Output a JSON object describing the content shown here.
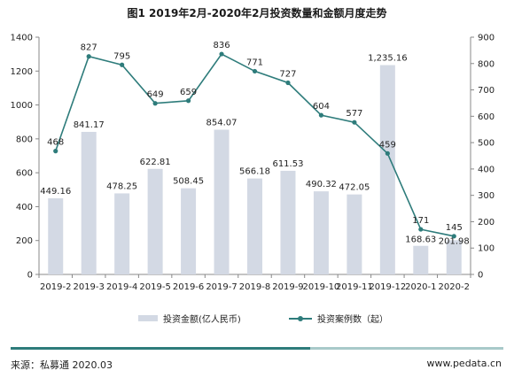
{
  "chart_data": {
    "type": "bar+line",
    "title": "图1 2019年2月-2020年2月投资数量和金额月度走势",
    "categories": [
      "2019-2",
      "2019-3",
      "2019-4",
      "2019-5",
      "2019-6",
      "2019-7",
      "2019-8",
      "2019-9",
      "2019-10",
      "2019-11",
      "2019-12",
      "2020-1",
      "2020-2"
    ],
    "series": [
      {
        "name": "投资金额(亿人民币)",
        "type": "bar",
        "axis": "left",
        "values": [
          449.16,
          841.17,
          478.25,
          622.81,
          508.45,
          854.07,
          566.18,
          611.53,
          490.32,
          472.05,
          1235.16,
          168.63,
          201.98
        ],
        "labels": [
          "449.16",
          "841.17",
          "478.25",
          "622.81",
          "508.45",
          "854.07",
          "566.18",
          "611.53",
          "490.32",
          "472.05",
          "1,235.16",
          "168.63",
          "201.98"
        ]
      },
      {
        "name": "投资案例数（起）",
        "type": "line",
        "axis": "right",
        "values": [
          468,
          827,
          795,
          649,
          659,
          836,
          771,
          727,
          604,
          577,
          459,
          171,
          145
        ],
        "labels": [
          "468",
          "827",
          "795",
          "649",
          "659",
          "836",
          "771",
          "727",
          "604",
          "577",
          "459",
          "171",
          "145"
        ]
      }
    ],
    "y_left": {
      "min": 0,
      "max": 1400,
      "ticks": [
        0,
        200,
        400,
        600,
        800,
        1000,
        1200,
        1400
      ]
    },
    "y_right": {
      "min": 0,
      "max": 900,
      "ticks": [
        0,
        100,
        200,
        300,
        400,
        500,
        600,
        700,
        800,
        900
      ]
    },
    "legend_position": "bottom",
    "colors": {
      "bar": "#d3d9e4",
      "line": "#2e7c7b",
      "axis": "#888888"
    }
  },
  "footer": {
    "source": "来源：私募通 2020.03",
    "website": "www.pedata.cn"
  }
}
